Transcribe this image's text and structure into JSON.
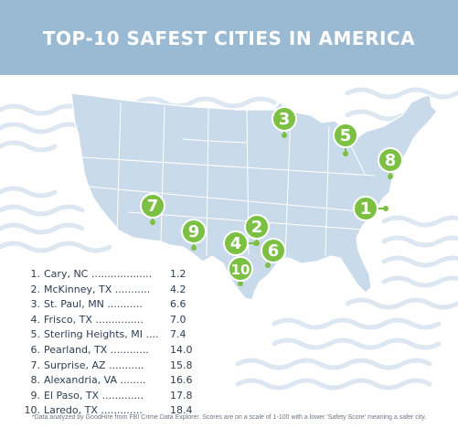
{
  "title": "TOP-10 SAFEST CITIES IN AMERICA",
  "colors": {
    "header": "#9ab9d2",
    "map_fill": "#c9daea",
    "map_stroke": "#ffffff",
    "marker": "#7bc043",
    "wave": "#dde7f1",
    "text": "#2e3d52"
  },
  "markers": [
    "1",
    "2",
    "3",
    "4",
    "5",
    "6",
    "7",
    "8",
    "9",
    "10"
  ],
  "rankings": [
    {
      "rank": "1.",
      "city": "Cary, NC",
      "dots": "...................",
      "score": "1.2"
    },
    {
      "rank": "2.",
      "city": "McKinney, TX",
      "dots": "...........",
      "score": "4.2"
    },
    {
      "rank": "3.",
      "city": "St. Paul, MN",
      "dots": "...........",
      "score": "6.6"
    },
    {
      "rank": "4.",
      "city": "Frisco, TX",
      "dots": "...............",
      "score": "7.0"
    },
    {
      "rank": "5.",
      "city": "Sterling Heights, MI",
      "dots": "....",
      "score": "7.4"
    },
    {
      "rank": "6.",
      "city": "Pearland, TX",
      "dots": "............",
      "score": "14.0"
    },
    {
      "rank": "7.",
      "city": "Surprise, AZ",
      "dots": "...........",
      "score": "15.8"
    },
    {
      "rank": "8.",
      "city": "Alexandria, VA",
      "dots": "........",
      "score": "16.6"
    },
    {
      "rank": "9.",
      "city": "El Paso, TX",
      "dots": ".............",
      "score": "17.8"
    },
    {
      "rank": "10.",
      "city": "Laredo, TX",
      "dots": ".............",
      "score": "18.4"
    }
  ],
  "footnote": "*Data analyzed by GoodHire from FBI Crime Data Explorer. Scores are on a scale of 1-100 with a lower 'Safety Score' meaning a safer city."
}
